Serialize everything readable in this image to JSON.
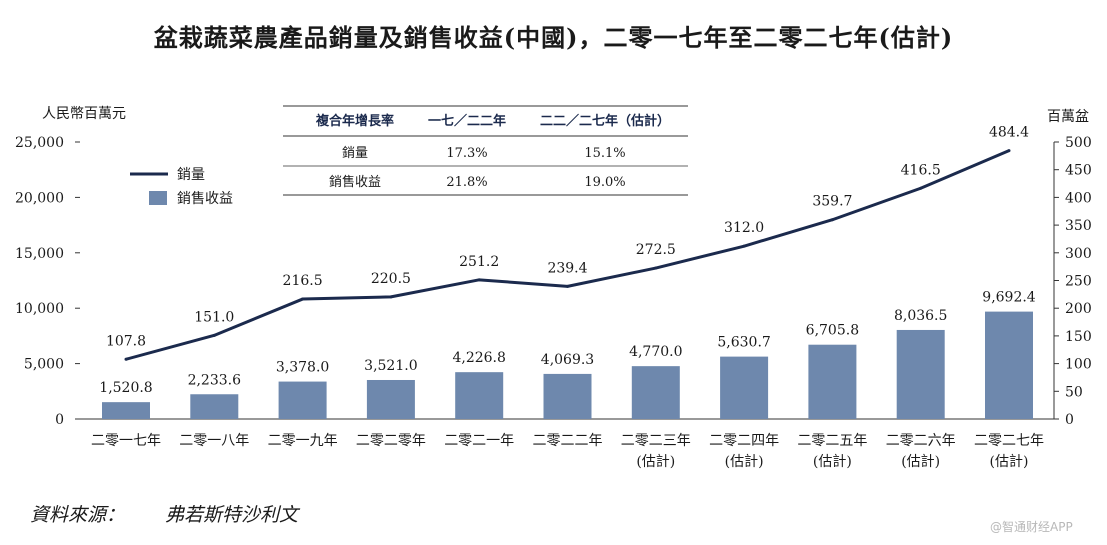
{
  "page": {
    "title": "盆栽蔬菜農產品銷量及銷售收益(中國)，二零一七年至二零二七年(估計)",
    "source_label": "資料來源：",
    "source_value": "弗若斯特沙利文",
    "watermark": "@智通财经APP"
  },
  "chart_data": {
    "type": "bar+line",
    "categories": [
      [
        "二零一七年"
      ],
      [
        "二零一八年"
      ],
      [
        "二零一九年"
      ],
      [
        "二零二零年"
      ],
      [
        "二零二一年"
      ],
      [
        "二零二二年"
      ],
      [
        "二零二三年",
        "(估計)"
      ],
      [
        "二零二四年",
        "(估計)"
      ],
      [
        "二零二五年",
        "(估計)"
      ],
      [
        "二零二六年",
        "(估計)"
      ],
      [
        "二零二七年",
        "(估計)"
      ]
    ],
    "series": [
      {
        "name": "銷售收益",
        "kind": "bar",
        "axis": "left",
        "color": "#6e88ad",
        "values": [
          1520.8,
          2233.6,
          3378.0,
          3521.0,
          4226.8,
          4069.3,
          4770.0,
          5630.7,
          6705.8,
          8036.5,
          9692.4
        ],
        "labels": [
          "1,520.8",
          "2,233.6",
          "3,378.0",
          "3,521.0",
          "4,226.8",
          "4,069.3",
          "4,770.0",
          "5,630.7",
          "6,705.8",
          "8,036.5",
          "9,692.4"
        ]
      },
      {
        "name": "銷量",
        "kind": "line",
        "axis": "right",
        "color": "#1b2a4d",
        "values": [
          107.8,
          151.0,
          216.5,
          220.5,
          251.2,
          239.4,
          272.5,
          312.0,
          359.7,
          416.5,
          484.4
        ],
        "labels": [
          "107.8",
          "151.0",
          "216.5",
          "220.5",
          "251.2",
          "239.4",
          "272.5",
          "312.0",
          "359.7",
          "416.5",
          "484.4"
        ]
      }
    ],
    "left_axis": {
      "label": "人民幣百萬元",
      "range": [
        0,
        25000
      ],
      "ticks": [
        0,
        5000,
        10000,
        15000,
        20000,
        25000
      ],
      "tick_labels": [
        "0",
        "5,000",
        "10,000",
        "15,000",
        "20,000",
        "25,000"
      ]
    },
    "right_axis": {
      "label": "百萬盆",
      "range": [
        0,
        500
      ],
      "ticks": [
        0,
        50,
        100,
        150,
        200,
        250,
        300,
        350,
        400,
        450,
        500
      ],
      "tick_labels": [
        "0",
        "50",
        "100",
        "150",
        "200",
        "250",
        "300",
        "350",
        "400",
        "450",
        "500"
      ]
    },
    "legend": {
      "placement": "top-left",
      "items": [
        {
          "label": "銷量",
          "kind": "line"
        },
        {
          "label": "銷售收益",
          "kind": "bar"
        }
      ]
    },
    "cagr_table": {
      "headers": [
        "複合年增長率",
        "一七／二二年",
        "二二／二七年（估計）"
      ],
      "rows": [
        [
          "銷量",
          "17.3%",
          "15.1%"
        ],
        [
          "銷售收益",
          "21.8%",
          "19.0%"
        ]
      ]
    }
  }
}
